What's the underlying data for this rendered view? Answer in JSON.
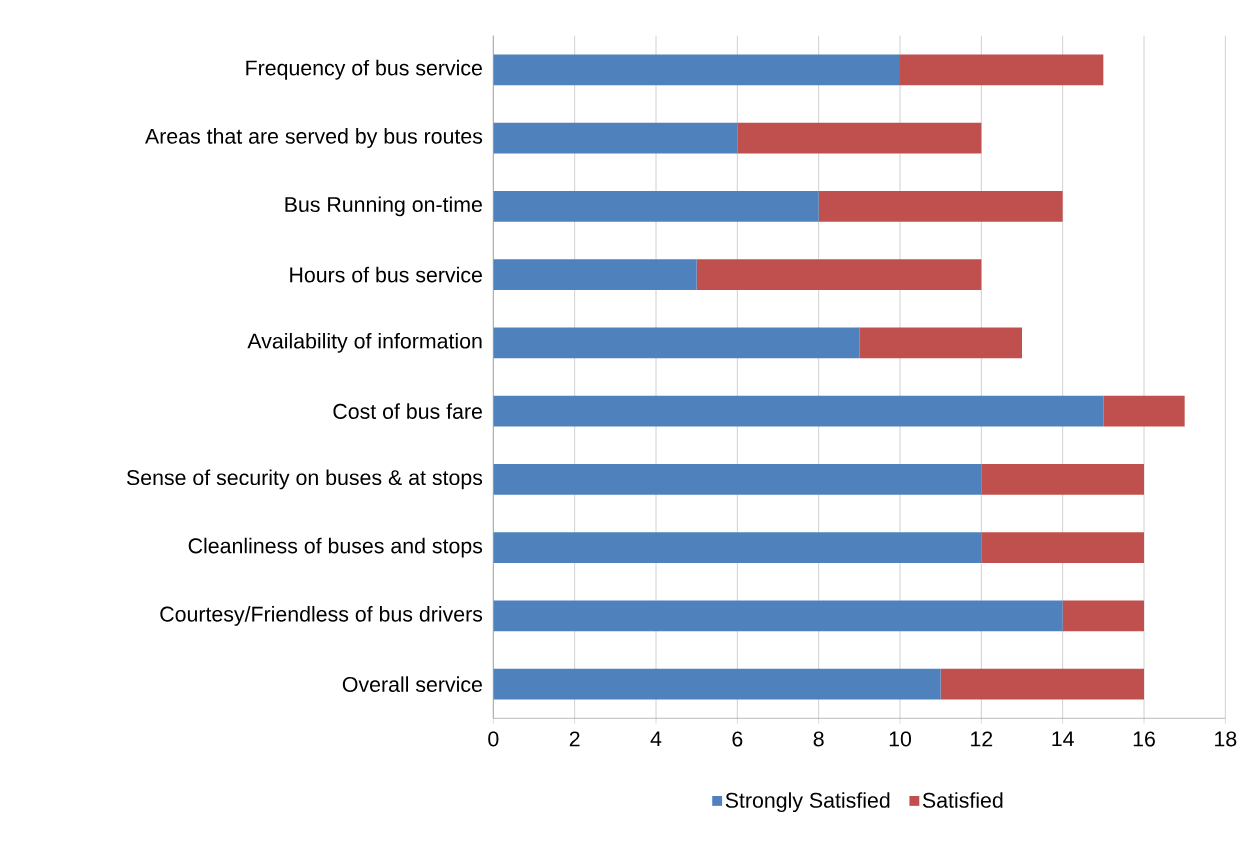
{
  "chart_data": {
    "type": "bar",
    "orientation": "horizontal",
    "stacked": true,
    "categories": [
      "Frequency of bus service",
      "Areas that are served by bus routes",
      "Bus Running on-time",
      "Hours of bus service",
      "Availability of information",
      "Cost of bus fare",
      "Sense of security on buses & at stops",
      "Cleanliness of buses and stops",
      "Courtesy/Friendless of bus drivers",
      "Overall service"
    ],
    "series": [
      {
        "name": "Strongly Satisfied",
        "color": "#4f81bd",
        "values": [
          10,
          6,
          8,
          5,
          9,
          15,
          12,
          12,
          14,
          11
        ]
      },
      {
        "name": "Satisfied",
        "color": "#c0504d",
        "values": [
          5,
          6,
          6,
          7,
          4,
          2,
          4,
          4,
          2,
          5
        ]
      }
    ],
    "xlim": [
      0,
      18
    ],
    "xticks": [
      0,
      2,
      4,
      6,
      8,
      10,
      12,
      14,
      16,
      18
    ],
    "grid": "x",
    "legend": "bottom"
  }
}
